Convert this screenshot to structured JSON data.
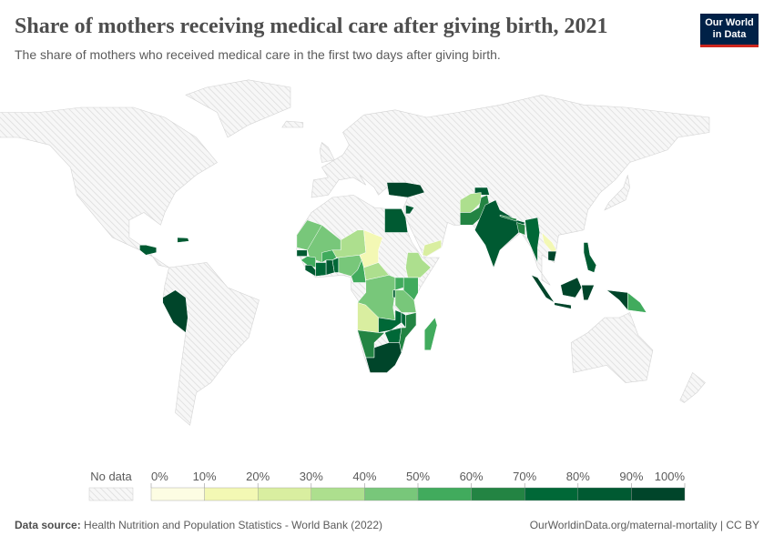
{
  "title": "Share of mothers receiving medical care after giving birth, 2021",
  "subtitle": "The share of mothers who received medical care in the first two days after giving birth.",
  "logo": {
    "line1": "Our World",
    "line2": "in Data"
  },
  "footer": {
    "source_label": "Data source:",
    "source": "Health Nutrition and Population Statistics - World Bank (2022)",
    "url_license": "OurWorldinData.org/maternal-mortality | CC BY"
  },
  "chart_data": {
    "type": "choropleth",
    "unit": "%",
    "legend": {
      "no_data_label": "No data",
      "ticks": [
        "0%",
        "10%",
        "20%",
        "30%",
        "40%",
        "50%",
        "60%",
        "70%",
        "80%",
        "90%",
        "100%"
      ],
      "colors": [
        "#fdfde3",
        "#f3f8b4",
        "#d9eea0",
        "#addf8e",
        "#78c77a",
        "#41ab5d",
        "#238443",
        "#006837",
        "#005a32",
        "#00452a"
      ],
      "no_data_color": "#e8e8e8"
    },
    "countries": [
      {
        "name": "Peru",
        "value": 92
      },
      {
        "name": "Guatemala",
        "value": 85
      },
      {
        "name": "Haiti / Dominican Republic",
        "value": 85
      },
      {
        "name": "Turkey",
        "value": 90
      },
      {
        "name": "Egypt",
        "value": 88
      },
      {
        "name": "Jordan",
        "value": 80
      },
      {
        "name": "Tajikistan",
        "value": 88
      },
      {
        "name": "Afghanistan",
        "value": 35
      },
      {
        "name": "Pakistan",
        "value": 68
      },
      {
        "name": "India",
        "value": 80
      },
      {
        "name": "Nepal",
        "value": 60
      },
      {
        "name": "Bangladesh",
        "value": 68
      },
      {
        "name": "Myanmar",
        "value": 78
      },
      {
        "name": "Laos",
        "value": 12
      },
      {
        "name": "Cambodia",
        "value": 90
      },
      {
        "name": "Philippines",
        "value": 85
      },
      {
        "name": "Indonesia",
        "value": 90
      },
      {
        "name": "Papua New Guinea",
        "value": 55
      },
      {
        "name": "Senegal",
        "value": 85
      },
      {
        "name": "Mauritania",
        "value": 45
      },
      {
        "name": "Mali",
        "value": 48
      },
      {
        "name": "Guinea",
        "value": 55
      },
      {
        "name": "Sierra Leone / Liberia",
        "value": 85
      },
      {
        "name": "Cote d'Ivoire",
        "value": 78
      },
      {
        "name": "Ghana",
        "value": 88
      },
      {
        "name": "Burkina Faso",
        "value": 50
      },
      {
        "name": "Togo / Benin",
        "value": 70
      },
      {
        "name": "Niger",
        "value": 35
      },
      {
        "name": "Nigeria",
        "value": 42
      },
      {
        "name": "Chad",
        "value": 15
      },
      {
        "name": "Cameroon",
        "value": 50
      },
      {
        "name": "Central African Republic",
        "value": 38
      },
      {
        "name": "Ethiopia",
        "value": 35
      },
      {
        "name": "Yemen",
        "value": 22
      },
      {
        "name": "Democratic Republic of Congo",
        "value": 45
      },
      {
        "name": "Angola",
        "value": 25
      },
      {
        "name": "Uganda",
        "value": 58
      },
      {
        "name": "Kenya",
        "value": 55
      },
      {
        "name": "Rwanda / Burundi",
        "value": 80
      },
      {
        "name": "Tanzania",
        "value": 40
      },
      {
        "name": "Zambia",
        "value": 70
      },
      {
        "name": "Malawi",
        "value": 75
      },
      {
        "name": "Mozambique",
        "value": 65
      },
      {
        "name": "Zimbabwe",
        "value": 75
      },
      {
        "name": "Namibia",
        "value": 68
      },
      {
        "name": "South Africa",
        "value": 90
      },
      {
        "name": "Madagascar",
        "value": 55
      }
    ]
  }
}
